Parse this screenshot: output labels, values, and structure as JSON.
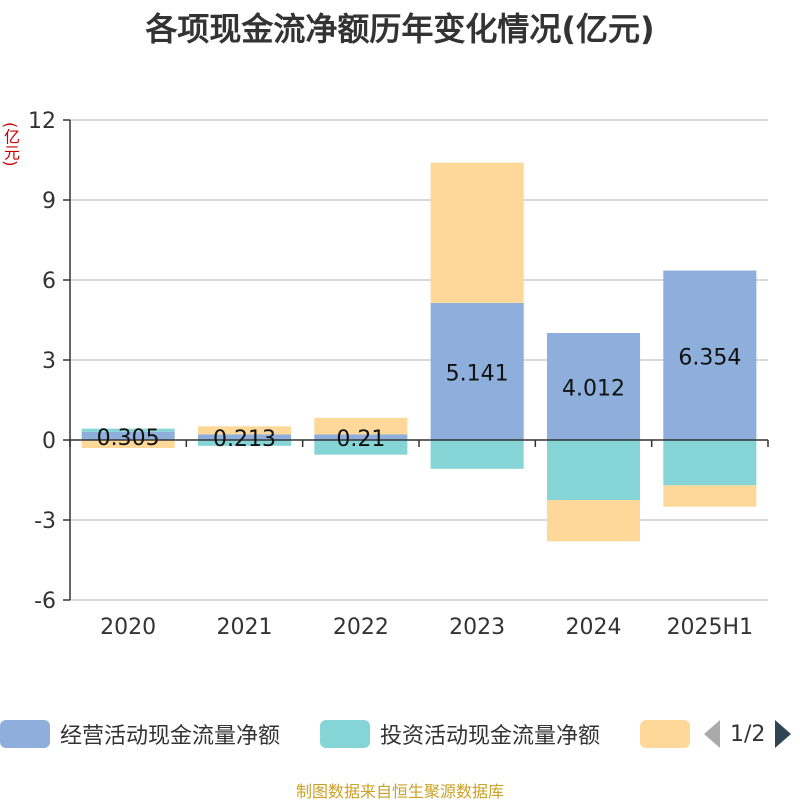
{
  "chart_data": {
    "type": "bar",
    "stacked": true,
    "title": "各项现金流净额历年变化情况(亿元)",
    "unit_label": "(亿元)",
    "categories": [
      "2020",
      "2021",
      "2022",
      "2023",
      "2024",
      "2025H1"
    ],
    "ylim": [
      -6,
      12
    ],
    "yticks": [
      12,
      9,
      6,
      3,
      0,
      -3,
      -6
    ],
    "grid": true,
    "legend_position": "bottom",
    "series": [
      {
        "name": "经营活动现金流量净额",
        "color": "#8eaedb",
        "values": [
          0.305,
          0.213,
          0.21,
          5.141,
          4.012,
          6.354
        ],
        "labels": [
          "0.305",
          "0.213",
          "0.21",
          "5.141",
          "4.012",
          "6.354"
        ]
      },
      {
        "name": "投资活动现金流量净额",
        "color": "#86d5d6",
        "values": [
          0.12,
          -0.22,
          -0.55,
          -1.08,
          -2.25,
          -1.7
        ]
      },
      {
        "name": "",
        "color": "#fdd898",
        "values": [
          -0.3,
          0.3,
          0.62,
          5.26,
          -1.55,
          -0.8
        ]
      }
    ]
  },
  "legend": {
    "page_indicator": "1/2"
  },
  "source": "制图数据来自恒生聚源数据库"
}
